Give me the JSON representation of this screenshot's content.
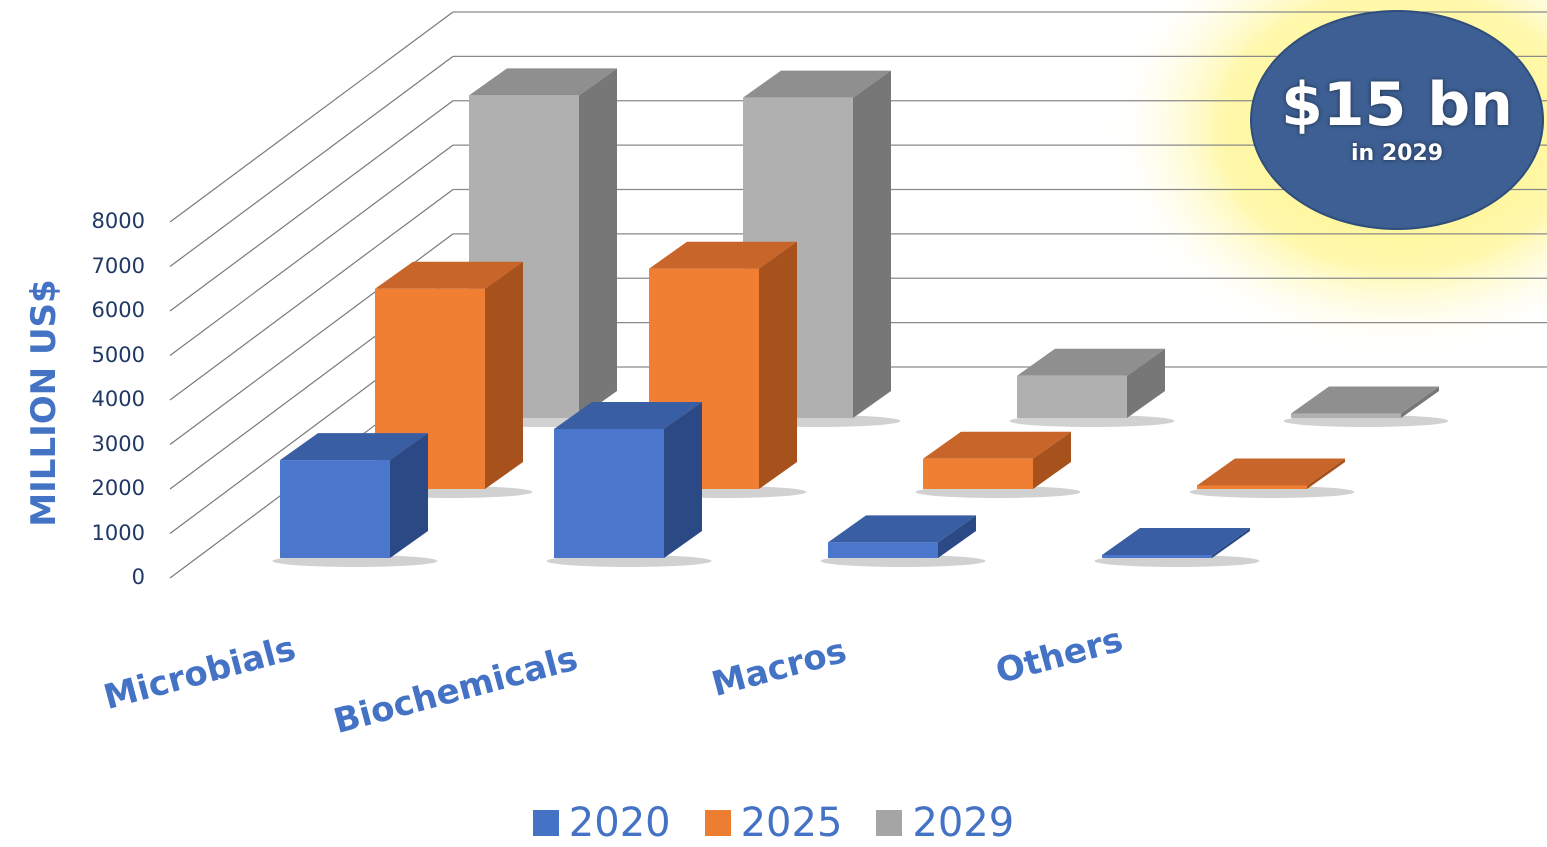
{
  "callout": {
    "headline": "$15 bn",
    "subline": "in 2029"
  },
  "chart_data": {
    "type": "bar",
    "ylabel": "MILLION US$",
    "ylim": [
      0,
      8000
    ],
    "yticks": [
      "0",
      "1000",
      "2000",
      "3000",
      "4000",
      "5000",
      "6000",
      "7000",
      "8000"
    ],
    "categories": [
      "Microbials",
      "Biochemicals",
      "Macros",
      "Others"
    ],
    "series": [
      {
        "name": "2020",
        "color": "#4472c4",
        "values": [
          2200,
          2900,
          350,
          30
        ]
      },
      {
        "name": "2025",
        "color": "#ed7d31",
        "values": [
          4500,
          4950,
          680,
          80
        ]
      },
      {
        "name": "2029",
        "color": "#a5a5a5",
        "values": [
          7250,
          7200,
          950,
          100
        ]
      }
    ],
    "legend_position": "bottom",
    "projection": "3d-clustered-columns",
    "grid": true
  }
}
